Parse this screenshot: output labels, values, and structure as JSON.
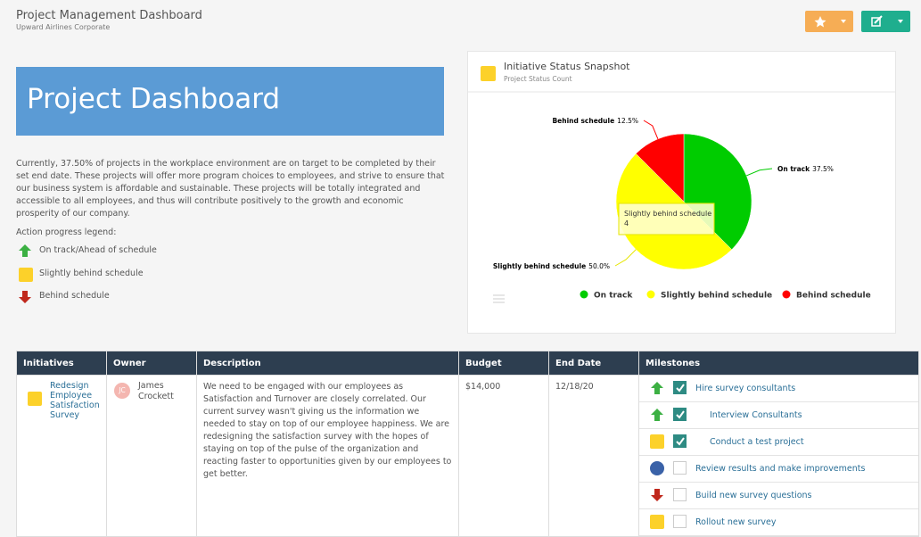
{
  "header": {
    "title": "Project Management Dashboard",
    "subtitle": "Upward Airlines Corporate"
  },
  "banner": "Project Dashboard",
  "intro": "Currently, 37.50% of projects in the workplace environment are on target to be completed by their set end date. These projects will offer more program choices to employees, and strive to ensure that our business system is affordable and sustainable. These projects will be totally integrated and accessible to all employees, and thus will contribute positively to the growth and economic prosperity of our company.",
  "legend": {
    "title": "Action progress legend:",
    "items": [
      "On track/Ahead of schedule",
      "Slightly behind schedule",
      "Behind schedule"
    ]
  },
  "chart_data": {
    "type": "pie",
    "title": "Initiative Status Snapshot",
    "subtitle": "Project Status Count",
    "categories": [
      "On track",
      "Slightly behind schedule",
      "Behind schedule"
    ],
    "values": [
      37.5,
      50,
      12.5
    ],
    "value_labels": [
      "37.5%",
      "50.0%",
      "12.5%"
    ],
    "colors": [
      "#00cc00",
      "#ffff00",
      "#ff0000"
    ],
    "tooltip_value": 4
  },
  "table": {
    "columns": [
      "Initiatives",
      "Owner",
      "Description",
      "Budget",
      "End Date",
      "Milestones"
    ],
    "rows": [
      {
        "initiative": "Redesign Employee Satisfaction Survey",
        "owner_initials": "JC",
        "owner": "James Crockett",
        "description": "We need to be engaged with our employees as Satisfaction and Turnover are closely correlated. Our current survey wasn't giving us the information we needed to stay on top of our employee happiness.  We are redesigning the satisfaction survey with the hopes of staying on top of the pulse of the organization and reacting faster to opportunities given by our employees to get better.",
        "budget": "$14,000",
        "end_date": "12/18/20",
        "milestones": [
          "Hire survey consultants",
          "Interview Consultants",
          "Conduct a test project",
          "Review results and make improvements",
          "Build new survey questions",
          "Rollout new survey"
        ]
      }
    ]
  }
}
